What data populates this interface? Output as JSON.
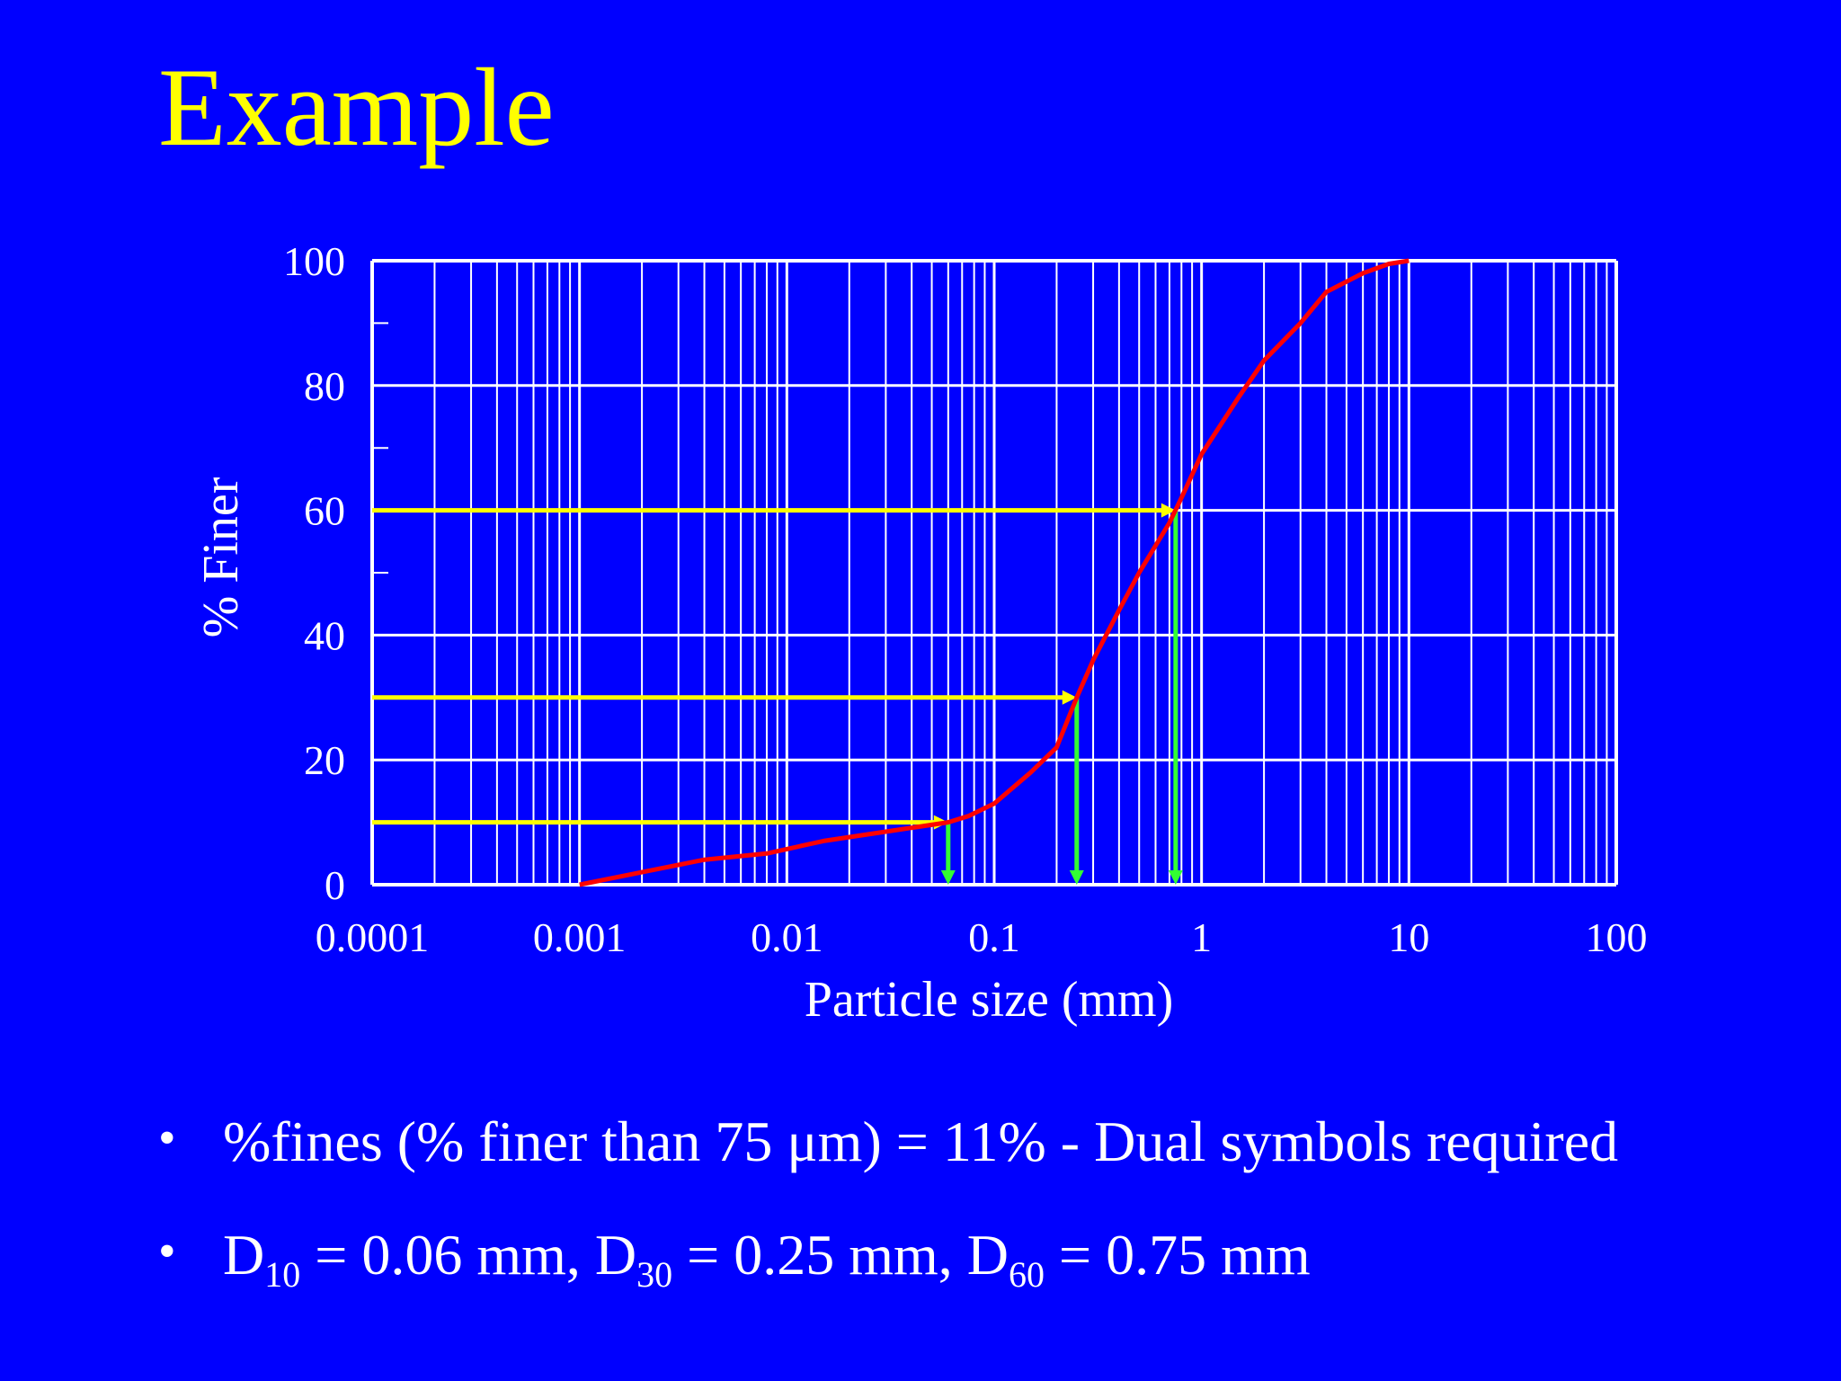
{
  "slide": {
    "title": "Example"
  },
  "bullets": {
    "b1": "%fines (% finer than 75 μm) = 11% - Dual symbols required",
    "b2": {
      "d10_D": "D",
      "d10_sub": "10",
      "d10_val": " = 0.06 mm, ",
      "d30_D": "D",
      "d30_sub": "30",
      "d30_val": " = 0.25 mm, ",
      "d60_D": "D",
      "d60_sub": "60",
      "d60_val": " = 0.75 mm"
    },
    "bullet_char": "•"
  },
  "colors": {
    "background": "#0000FF",
    "title": "#FFFF00",
    "curve": "#FF0000",
    "guide_horizontal": "#FFFF00",
    "guide_vertical": "#33FF33",
    "grid": "#FFFFFF"
  },
  "chart_data": {
    "type": "line",
    "title": "",
    "xlabel": "Particle size (mm)",
    "ylabel": "% Finer",
    "xscale": "log",
    "xlim": [
      0.0001,
      100
    ],
    "ylim": [
      0,
      100
    ],
    "xticks": [
      "0.0001",
      "0.001",
      "0.01",
      "0.1",
      "1",
      "10",
      "100"
    ],
    "yticks": [
      "0",
      "20",
      "40",
      "60",
      "80",
      "100"
    ],
    "grid": true,
    "series": [
      {
        "color": "#FF0000",
        "x": [
          0.001,
          0.002,
          0.004,
          0.008,
          0.015,
          0.03,
          0.06,
          0.075,
          0.1,
          0.15,
          0.2,
          0.25,
          0.3,
          0.4,
          0.5,
          0.7,
          0.8,
          1,
          1.5,
          2,
          3,
          4,
          6,
          8,
          10
        ],
        "y": [
          0,
          2,
          4,
          5,
          7,
          8.5,
          10,
          11,
          13,
          18,
          22,
          30,
          36,
          44,
          50,
          58,
          62,
          69,
          78,
          84,
          90,
          95,
          98,
          99.5,
          100
        ]
      }
    ],
    "annotations": [
      {
        "label": "D10",
        "percent": 10,
        "size_mm": 0.06
      },
      {
        "label": "D30",
        "percent": 30,
        "size_mm": 0.25
      },
      {
        "label": "D60",
        "percent": 60,
        "size_mm": 0.75
      }
    ]
  }
}
